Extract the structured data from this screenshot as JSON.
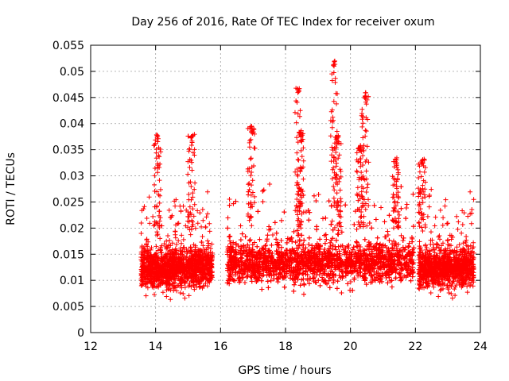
{
  "chart_data": {
    "type": "scatter",
    "title": "Day 256 of 2016, Rate Of TEC Index for receiver oxum",
    "xlabel": "GPS time / hours",
    "ylabel": "ROTI / TECUs",
    "xlim": [
      12,
      24
    ],
    "ylim": [
      0,
      0.055
    ],
    "x_ticks": [
      "12",
      "14",
      "16",
      "18",
      "20",
      "22",
      "24"
    ],
    "y_ticks": [
      "0",
      "0.005",
      "0.01",
      "0.015",
      "0.02",
      "0.025",
      "0.03",
      "0.035",
      "0.04",
      "0.045",
      "0.05",
      "0.055"
    ],
    "grid": true,
    "marker": "+",
    "series_color": "#ff0000",
    "segments": [
      {
        "start": 13.55,
        "end": 15.75,
        "baseline": 0.0125
      },
      {
        "start": 16.2,
        "end": 21.95,
        "baseline": 0.0135
      },
      {
        "start": 22.1,
        "end": 23.8,
        "baseline": 0.0125
      }
    ],
    "spikes": [
      {
        "x": 14.05,
        "y": 0.038
      },
      {
        "x": 15.1,
        "y": 0.038
      },
      {
        "x": 16.95,
        "y": 0.0395
      },
      {
        "x": 18.4,
        "y": 0.047
      },
      {
        "x": 18.45,
        "y": 0.0385
      },
      {
        "x": 19.5,
        "y": 0.052
      },
      {
        "x": 19.6,
        "y": 0.038
      },
      {
        "x": 20.45,
        "y": 0.046
      },
      {
        "x": 20.3,
        "y": 0.036
      },
      {
        "x": 21.4,
        "y": 0.0335
      },
      {
        "x": 22.2,
        "y": 0.0335
      }
    ]
  }
}
